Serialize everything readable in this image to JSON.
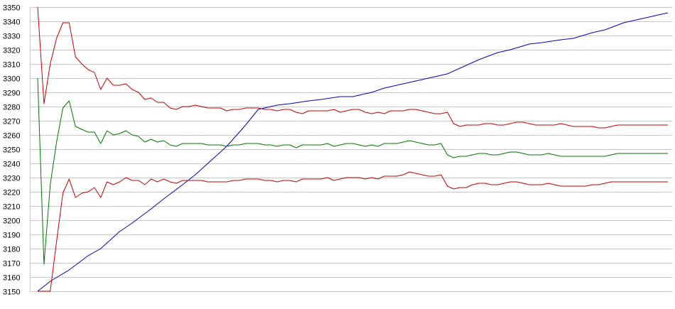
{
  "chart_data": {
    "type": "line",
    "title": "",
    "xlabel": "",
    "ylabel": "",
    "grid": true,
    "legend": "none",
    "ylim": [
      3150,
      3350
    ],
    "xlim": [
      0,
      100
    ],
    "y_ticks": [
      "3150",
      "3160",
      "3170",
      "3180",
      "3190",
      "3200",
      "3210",
      "3220",
      "3230",
      "3240",
      "3250",
      "3260",
      "3270",
      "3280",
      "3290",
      "3300",
      "3310",
      "3320",
      "3330",
      "3340",
      "3350"
    ],
    "series": [
      {
        "color": "#0000cc",
        "x": [
          0,
          2,
          5,
          8,
          10,
          13,
          15,
          18,
          20,
          23,
          25,
          28,
          30,
          33,
          35,
          38,
          40,
          43,
          45,
          48,
          50,
          53,
          55,
          58,
          60,
          63,
          65,
          68,
          70,
          73,
          75,
          78,
          80,
          83,
          85,
          88,
          90,
          93,
          95,
          98,
          100
        ],
        "values": [
          3150,
          3157,
          3165,
          3175,
          3180,
          3192,
          3198,
          3208,
          3215,
          3225,
          3232,
          3244,
          3252,
          3267,
          3278,
          3281,
          3282,
          3284,
          3285,
          3287,
          3287,
          3290,
          3293,
          3296,
          3298,
          3301,
          3303,
          3309,
          3313,
          3318,
          3320,
          3324,
          3325,
          3327,
          3328,
          3332,
          3334,
          3339,
          3341,
          3344,
          3346
        ]
      },
      {
        "color": "#cc0000",
        "x": [
          0,
          1,
          2,
          3,
          4,
          5,
          6,
          7,
          8,
          9,
          10,
          11,
          12,
          13,
          14,
          15,
          16,
          17,
          18,
          19,
          20,
          21,
          22,
          23,
          24,
          25,
          26,
          27,
          28,
          29,
          30,
          31,
          32,
          33,
          34,
          35,
          36,
          37,
          38,
          39,
          40,
          41,
          42,
          43,
          44,
          45,
          46,
          47,
          48,
          49,
          50,
          51,
          52,
          53,
          54,
          55,
          56,
          57,
          58,
          59,
          60,
          61,
          62,
          63,
          64,
          65,
          66,
          67,
          68,
          69,
          70,
          71,
          72,
          73,
          74,
          75,
          76,
          77,
          78,
          79,
          80,
          81,
          82,
          83,
          84,
          85,
          86,
          87,
          88,
          89,
          90,
          91,
          92,
          93,
          94,
          95,
          96,
          97,
          98,
          99,
          100
        ],
        "values": [
          3350,
          3282,
          3310,
          3328,
          3339,
          3339,
          3315,
          3310,
          3306,
          3304,
          3292,
          3300,
          3295,
          3295,
          3296,
          3292,
          3290,
          3285,
          3286,
          3283,
          3283,
          3279,
          3278,
          3280,
          3280,
          3281,
          3280,
          3279,
          3279,
          3279,
          3277,
          3278,
          3278,
          3279,
          3279,
          3279,
          3278,
          3278,
          3277,
          3278,
          3278,
          3276,
          3275,
          3277,
          3277,
          3277,
          3277,
          3278,
          3276,
          3277,
          3278,
          3278,
          3276,
          3275,
          3276,
          3275,
          3277,
          3277,
          3277,
          3278,
          3278,
          3277,
          3276,
          3275,
          3275,
          3276,
          3268,
          3266,
          3267,
          3267,
          3267,
          3268,
          3268,
          3267,
          3267,
          3268,
          3269,
          3269,
          3268,
          3267,
          3267,
          3267,
          3267,
          3268,
          3267,
          3266,
          3266,
          3266,
          3266,
          3265,
          3265,
          3266,
          3267,
          3267,
          3267,
          3267,
          3267,
          3267,
          3267,
          3267,
          3267
        ]
      },
      {
        "color": "#007700",
        "x": [
          0,
          1,
          2,
          3,
          4,
          5,
          6,
          7,
          8,
          9,
          10,
          11,
          12,
          13,
          14,
          15,
          16,
          17,
          18,
          19,
          20,
          21,
          22,
          23,
          24,
          25,
          26,
          27,
          28,
          29,
          30,
          31,
          32,
          33,
          34,
          35,
          36,
          37,
          38,
          39,
          40,
          41,
          42,
          43,
          44,
          45,
          46,
          47,
          48,
          49,
          50,
          51,
          52,
          53,
          54,
          55,
          56,
          57,
          58,
          59,
          60,
          61,
          62,
          63,
          64,
          65,
          66,
          67,
          68,
          69,
          70,
          71,
          72,
          73,
          74,
          75,
          76,
          77,
          78,
          79,
          80,
          81,
          82,
          83,
          84,
          85,
          86,
          87,
          88,
          89,
          90,
          91,
          92,
          93,
          94,
          95,
          96,
          97,
          98,
          99,
          100
        ],
        "values": [
          3300,
          3169,
          3225,
          3255,
          3279,
          3284,
          3266,
          3264,
          3262,
          3262,
          3254,
          3263,
          3260,
          3261,
          3263,
          3260,
          3259,
          3255,
          3257,
          3255,
          3256,
          3253,
          3252,
          3254,
          3254,
          3254,
          3254,
          3253,
          3253,
          3253,
          3252,
          3253,
          3253,
          3254,
          3254,
          3254,
          3253,
          3253,
          3252,
          3253,
          3253,
          3251,
          3253,
          3253,
          3253,
          3253,
          3254,
          3252,
          3253,
          3254,
          3254,
          3253,
          3252,
          3253,
          3252,
          3254,
          3254,
          3254,
          3255,
          3256,
          3255,
          3254,
          3253,
          3253,
          3254,
          3246,
          3244,
          3245,
          3245,
          3246,
          3247,
          3247,
          3246,
          3246,
          3247,
          3248,
          3248,
          3247,
          3246,
          3246,
          3246,
          3247,
          3246,
          3245,
          3245,
          3245,
          3245,
          3245,
          3245,
          3245,
          3245,
          3246,
          3247,
          3247,
          3247,
          3247,
          3247,
          3247,
          3247,
          3247,
          3247
        ]
      },
      {
        "color": "#cc0000",
        "x": [
          0,
          1,
          2,
          3,
          4,
          5,
          6,
          7,
          8,
          9,
          10,
          11,
          12,
          13,
          14,
          15,
          16,
          17,
          18,
          19,
          20,
          21,
          22,
          23,
          24,
          25,
          26,
          27,
          28,
          29,
          30,
          31,
          32,
          33,
          34,
          35,
          36,
          37,
          38,
          39,
          40,
          41,
          42,
          43,
          44,
          45,
          46,
          47,
          48,
          49,
          50,
          51,
          52,
          53,
          54,
          55,
          56,
          57,
          58,
          59,
          60,
          61,
          62,
          63,
          64,
          65,
          66,
          67,
          68,
          69,
          70,
          71,
          72,
          73,
          74,
          75,
          76,
          77,
          78,
          79,
          80,
          81,
          82,
          83,
          84,
          85,
          86,
          87,
          88,
          89,
          90,
          91,
          92,
          93,
          94,
          95,
          96,
          97,
          98,
          99,
          100
        ],
        "values": [
          3150,
          3150,
          3150,
          3185,
          3219,
          3229,
          3216,
          3219,
          3220,
          3223,
          3216,
          3227,
          3225,
          3227,
          3230,
          3228,
          3228,
          3225,
          3229,
          3227,
          3229,
          3227,
          3226,
          3228,
          3228,
          3228,
          3228,
          3227,
          3227,
          3227,
          3227,
          3228,
          3228,
          3229,
          3229,
          3229,
          3228,
          3228,
          3227,
          3228,
          3228,
          3227,
          3229,
          3229,
          3229,
          3229,
          3230,
          3228,
          3229,
          3230,
          3230,
          3230,
          3229,
          3230,
          3229,
          3231,
          3231,
          3231,
          3232,
          3234,
          3233,
          3232,
          3231,
          3231,
          3232,
          3224,
          3222,
          3223,
          3223,
          3225,
          3226,
          3226,
          3225,
          3225,
          3226,
          3227,
          3227,
          3226,
          3225,
          3225,
          3225,
          3226,
          3225,
          3224,
          3224,
          3224,
          3224,
          3224,
          3225,
          3225,
          3226,
          3227,
          3227,
          3227,
          3227,
          3227,
          3227,
          3227,
          3227,
          3227,
          3227
        ]
      }
    ]
  }
}
